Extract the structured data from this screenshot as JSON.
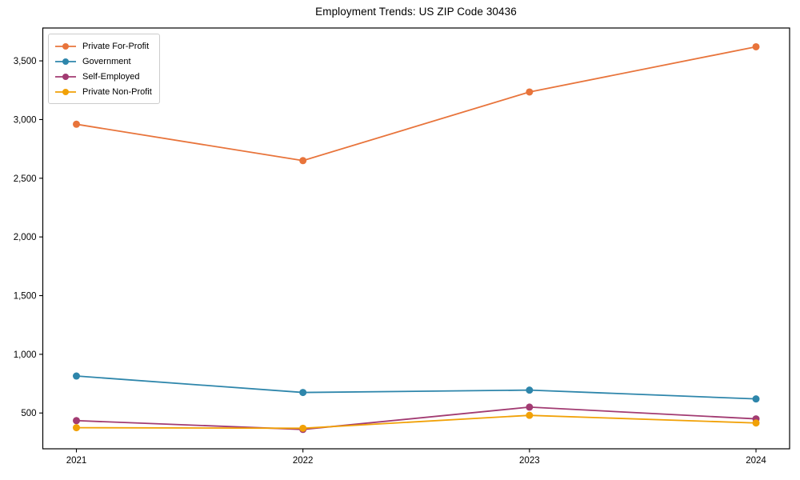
{
  "chart_data": {
    "type": "line",
    "title": "Employment Trends: US ZIP Code 30436",
    "xlabel": "",
    "ylabel": "",
    "categories": [
      "2021",
      "2022",
      "2023",
      "2024"
    ],
    "series": [
      {
        "name": "Private For-Profit",
        "color": "#E8743B",
        "values": [
          2960,
          2650,
          3235,
          3620
        ]
      },
      {
        "name": "Government",
        "color": "#2E86AB",
        "values": [
          815,
          675,
          695,
          620
        ]
      },
      {
        "name": "Self-Employed",
        "color": "#A23B72",
        "values": [
          435,
          360,
          550,
          450
        ]
      },
      {
        "name": "Private Non-Profit",
        "color": "#F1A107",
        "values": [
          375,
          370,
          480,
          415
        ]
      }
    ],
    "y_axis": {
      "ticks": [
        {
          "value": 500,
          "label": "500"
        },
        {
          "value": 1000,
          "label": "1,000"
        },
        {
          "value": 1500,
          "label": "1,500"
        },
        {
          "value": 2000,
          "label": "2,000"
        },
        {
          "value": 2500,
          "label": "2,500"
        },
        {
          "value": 3000,
          "label": "3,000"
        },
        {
          "value": 3500,
          "label": "3,500"
        }
      ]
    },
    "ylim": [
      195,
      3780
    ],
    "grid": false,
    "legend_position": "upper-left",
    "spine_color": "#000000",
    "tick_label_color": "#000000"
  }
}
